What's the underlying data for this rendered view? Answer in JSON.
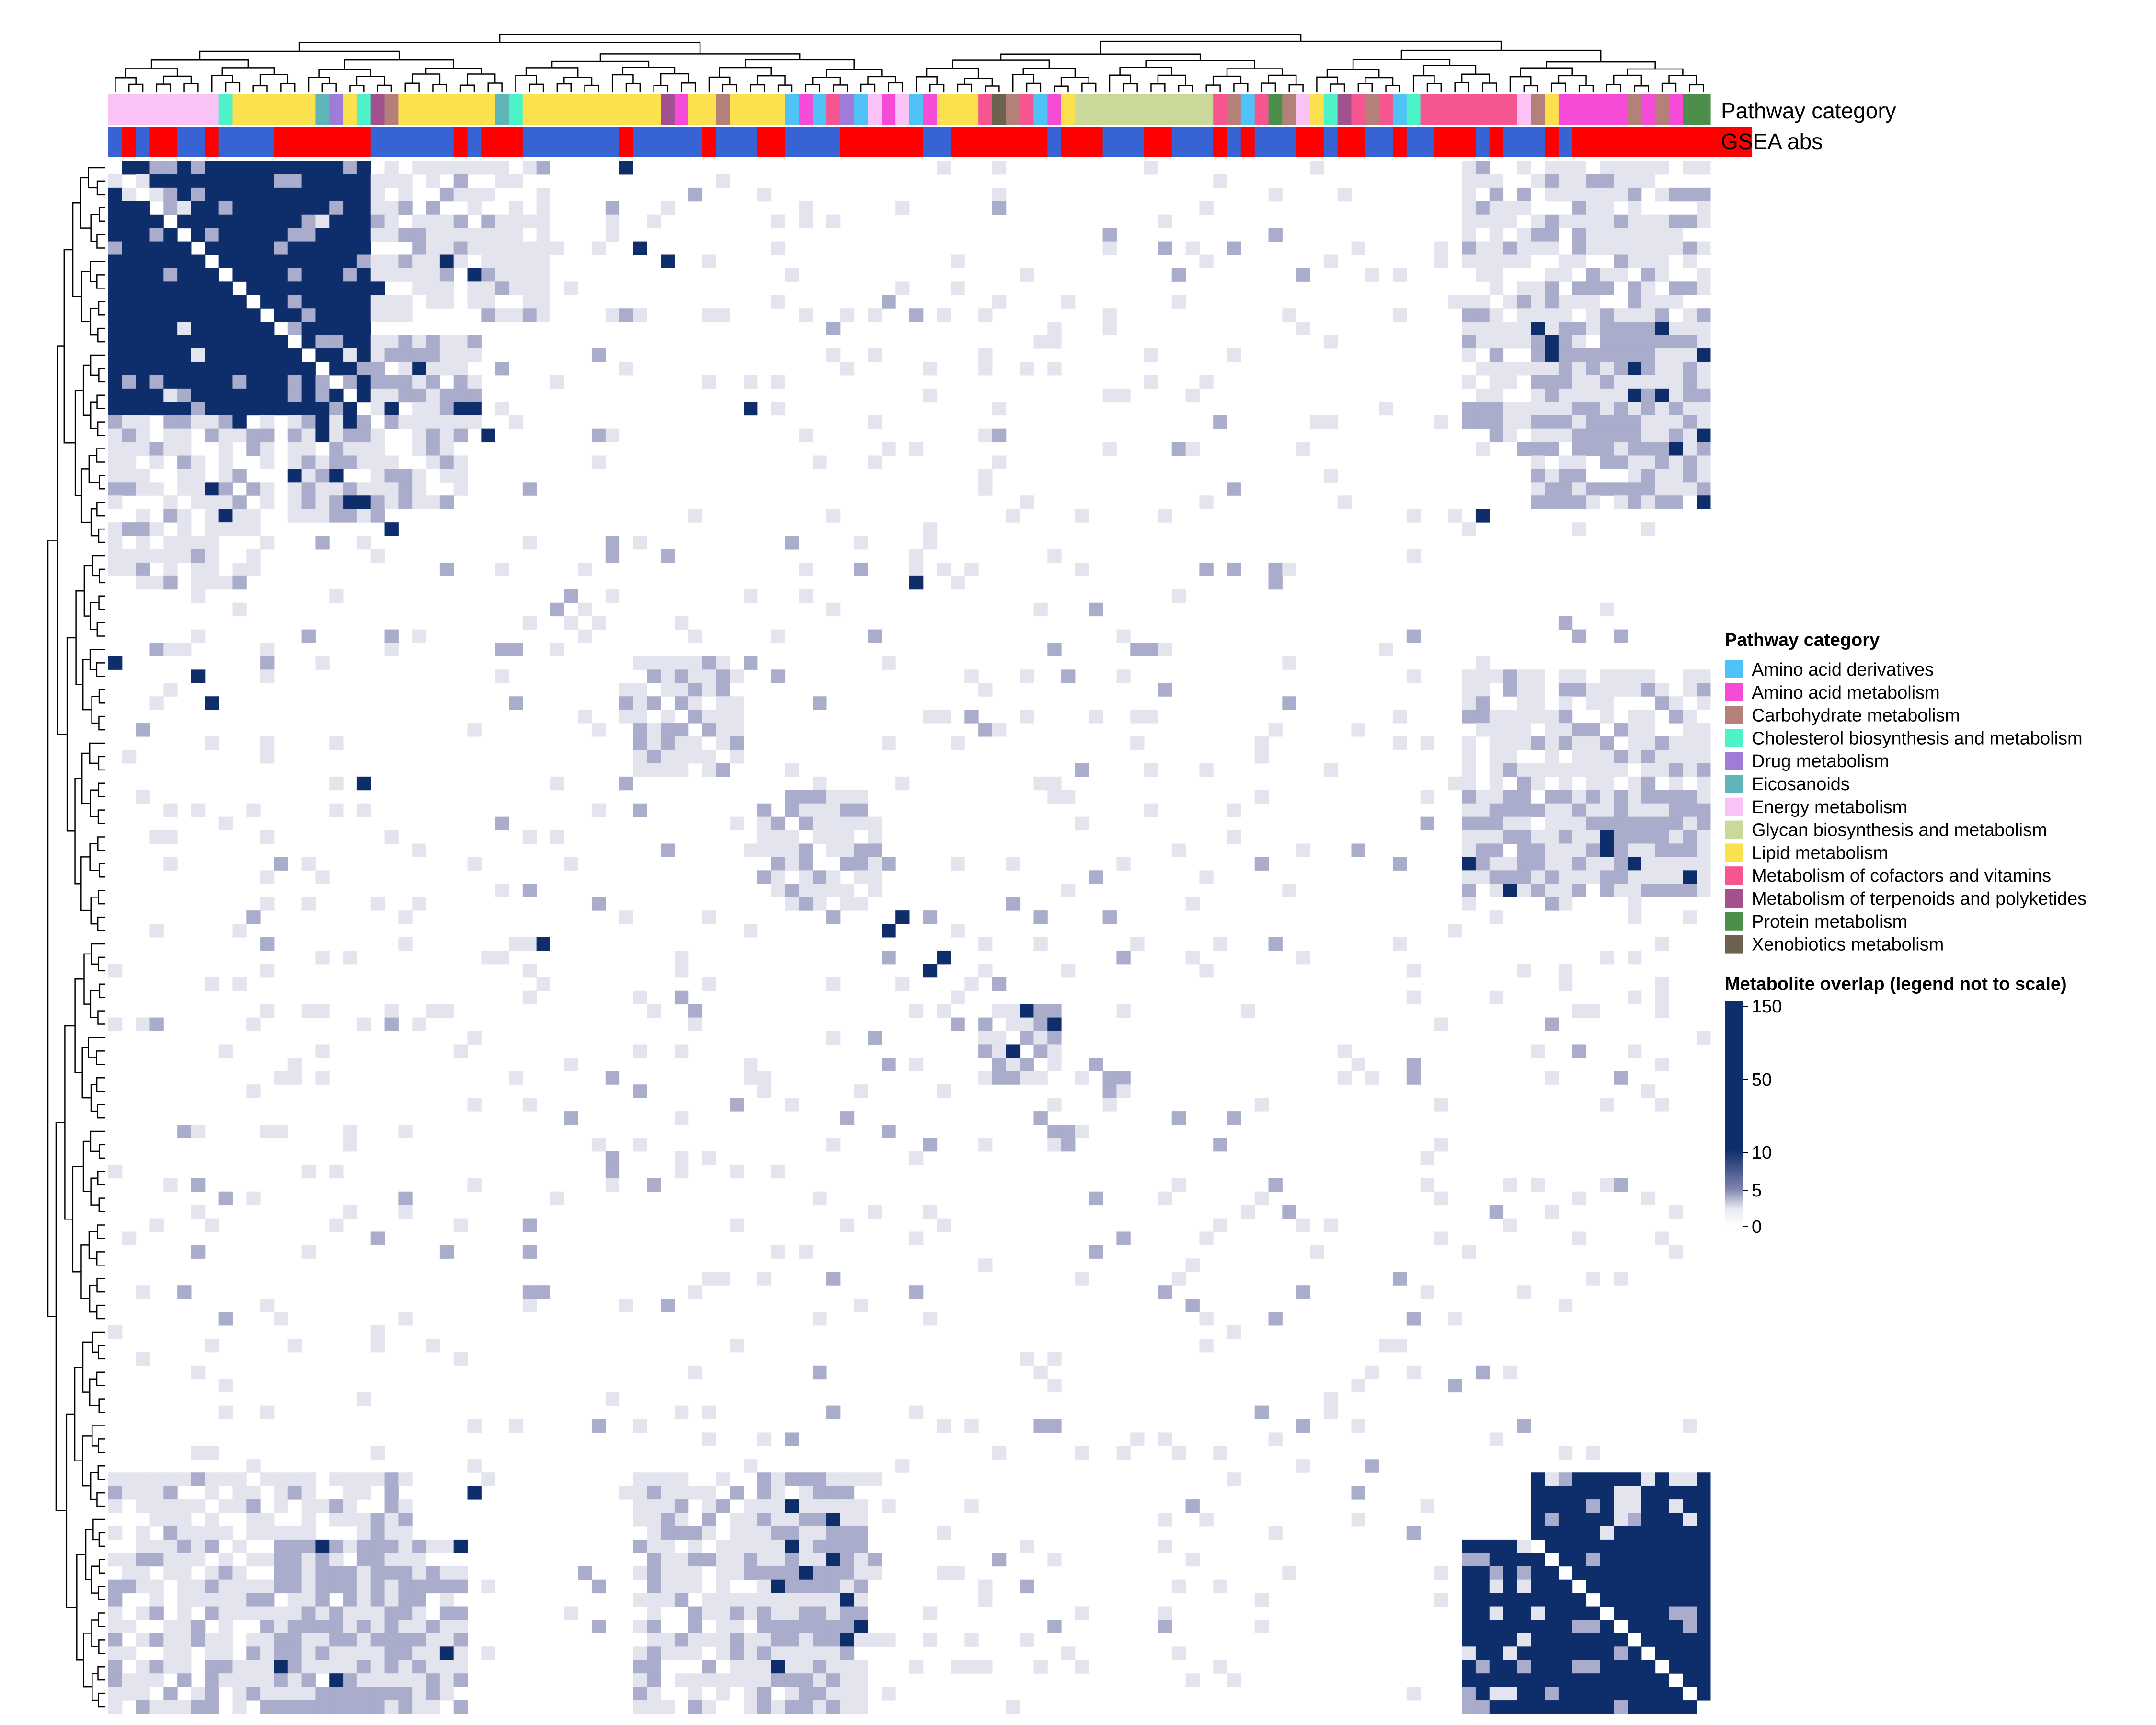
{
  "chart_data": {
    "type": "heatmap",
    "n": 116,
    "annotation_rows": [
      "Pathway category",
      "GSEA abs"
    ],
    "legend_category": {
      "title": "Pathway category",
      "items": [
        {
          "label": "Amino acid derivatives",
          "color": "#4FC3F7"
        },
        {
          "label": "Amino acid metabolism",
          "color": "#F54BD7"
        },
        {
          "label": "Carbohydrate metabolism",
          "color": "#B5807A"
        },
        {
          "label": "Cholesterol biosynthesis and metabolism",
          "color": "#4EF2C8"
        },
        {
          "label": "Drug metabolism",
          "color": "#A07CD9"
        },
        {
          "label": "Eicosanoids",
          "color": "#5FB5B8"
        },
        {
          "label": "Energy metabolism",
          "color": "#FBC2F5"
        },
        {
          "label": "Glycan biosynthesis and metabolism",
          "color": "#CAD99A"
        },
        {
          "label": "Lipid metabolism",
          "color": "#FCE14F"
        },
        {
          "label": "Metabolism of cofactors and vitamins",
          "color": "#F5568F"
        },
        {
          "label": "Metabolism of terpenoids and polyketides",
          "color": "#A3508F"
        },
        {
          "label": "Protein metabolism",
          "color": "#4D8F4A"
        },
        {
          "label": "Xenobiotics metabolism",
          "color": "#6B6250"
        }
      ]
    },
    "legend_scale": {
      "title": "Metabolite overlap (legend not to scale)",
      "ticks": [
        "150",
        "50",
        "10",
        "5",
        "0"
      ],
      "colors": {
        "high": "#0E2E6B",
        "mid": "#7D82AD",
        "low": "#E8E8F2"
      }
    },
    "gsea_colors": {
      "pos": "#FF0000",
      "neg": "#3763D4"
    },
    "category_runs": [
      [
        8,
        6
      ],
      [
        1,
        3
      ],
      [
        6,
        8
      ],
      [
        1,
        5
      ],
      [
        1,
        4
      ],
      [
        1,
        8
      ],
      [
        1,
        3
      ],
      [
        1,
        10
      ],
      [
        1,
        2
      ],
      [
        7,
        8
      ],
      [
        1,
        5
      ],
      [
        1,
        3
      ],
      [
        10,
        8
      ],
      [
        1,
        10
      ],
      [
        1,
        1
      ],
      [
        2,
        8
      ],
      [
        1,
        2
      ],
      [
        1,
        8
      ],
      [
        3,
        8
      ],
      [
        1,
        0
      ],
      [
        1,
        1
      ],
      [
        1,
        0
      ],
      [
        1,
        9
      ],
      [
        1,
        4
      ],
      [
        1,
        0
      ],
      [
        1,
        6
      ],
      [
        1,
        1
      ],
      [
        1,
        6
      ],
      [
        1,
        0
      ],
      [
        1,
        1
      ],
      [
        3,
        8
      ],
      [
        1,
        9
      ],
      [
        1,
        12
      ],
      [
        1,
        2
      ],
      [
        1,
        9
      ],
      [
        1,
        0
      ],
      [
        1,
        1
      ],
      [
        1,
        8
      ],
      [
        10,
        7
      ],
      [
        1,
        9
      ],
      [
        1,
        2
      ],
      [
        1,
        0
      ],
      [
        1,
        9
      ],
      [
        1,
        11
      ],
      [
        1,
        2
      ],
      [
        1,
        6
      ],
      [
        1,
        8
      ],
      [
        1,
        3
      ],
      [
        1,
        10
      ],
      [
        1,
        9
      ],
      [
        1,
        2
      ],
      [
        1,
        9
      ],
      [
        1,
        0
      ],
      [
        1,
        3
      ],
      [
        7,
        9
      ],
      [
        1,
        6
      ],
      [
        1,
        2
      ],
      [
        1,
        8
      ],
      [
        5,
        1
      ],
      [
        1,
        2
      ],
      [
        1,
        1
      ],
      [
        1,
        2
      ],
      [
        1,
        1
      ],
      [
        1,
        11
      ],
      [
        1,
        11
      ]
    ],
    "gsea_runs": [
      [
        1,
        0
      ],
      [
        1,
        1
      ],
      [
        1,
        0
      ],
      [
        2,
        1
      ],
      [
        2,
        0
      ],
      [
        1,
        1
      ],
      [
        4,
        0
      ],
      [
        7,
        1
      ],
      [
        6,
        0
      ],
      [
        1,
        1
      ],
      [
        1,
        0
      ],
      [
        3,
        1
      ],
      [
        7,
        0
      ],
      [
        1,
        1
      ],
      [
        5,
        0
      ],
      [
        1,
        1
      ],
      [
        3,
        0
      ],
      [
        2,
        1
      ],
      [
        4,
        0
      ],
      [
        6,
        1
      ],
      [
        2,
        0
      ],
      [
        7,
        1
      ],
      [
        1,
        0
      ],
      [
        3,
        1
      ],
      [
        3,
        0
      ],
      [
        2,
        1
      ],
      [
        3,
        0
      ],
      [
        1,
        1
      ],
      [
        1,
        0
      ],
      [
        1,
        1
      ],
      [
        3,
        0
      ],
      [
        2,
        1
      ],
      [
        1,
        0
      ],
      [
        2,
        1
      ],
      [
        2,
        0
      ],
      [
        1,
        1
      ],
      [
        2,
        0
      ],
      [
        3,
        1
      ],
      [
        1,
        0
      ],
      [
        1,
        1
      ],
      [
        3,
        0
      ],
      [
        1,
        1
      ],
      [
        1,
        0
      ],
      [
        13,
        1
      ]
    ],
    "blocks": [
      [
        0,
        12,
        0,
        12,
        3
      ],
      [
        7,
        12,
        7,
        12,
        3
      ],
      [
        0,
        12,
        7,
        12,
        3
      ],
      [
        7,
        12,
        0,
        12,
        3
      ],
      [
        0,
        12,
        13,
        6,
        1
      ],
      [
        13,
        6,
        0,
        12,
        1
      ],
      [
        13,
        6,
        13,
        6,
        2
      ],
      [
        12,
        20,
        0,
        12,
        1
      ],
      [
        0,
        12,
        12,
        20,
        1
      ],
      [
        37,
        8,
        38,
        8,
        1
      ],
      [
        38,
        8,
        37,
        8,
        1
      ],
      [
        47,
        9,
        48,
        7,
        1
      ],
      [
        48,
        7,
        47,
        9,
        1
      ],
      [
        63,
        6,
        64,
        5,
        2
      ],
      [
        64,
        5,
        63,
        6,
        2
      ],
      [
        68,
        2,
        72,
        2,
        2
      ],
      [
        72,
        2,
        68,
        2,
        2
      ],
      [
        98,
        18,
        103,
        13,
        3
      ],
      [
        103,
        13,
        98,
        18,
        3
      ],
      [
        98,
        18,
        0,
        22,
        1
      ],
      [
        0,
        22,
        98,
        18,
        1
      ],
      [
        98,
        18,
        38,
        16,
        1
      ],
      [
        38,
        16,
        98,
        18,
        1
      ],
      [
        98,
        18,
        47,
        8,
        2
      ],
      [
        47,
        8,
        98,
        18,
        2
      ],
      [
        12,
        14,
        103,
        13,
        2
      ],
      [
        103,
        13,
        12,
        14,
        2
      ],
      [
        17,
        10,
        13,
        7,
        2
      ],
      [
        13,
        7,
        17,
        10,
        2
      ],
      [
        19,
        6,
        22,
        4,
        1
      ],
      [
        22,
        4,
        19,
        6,
        1
      ]
    ],
    "hot": [
      [
        56,
        56
      ],
      [
        57,
        57
      ],
      [
        56,
        57
      ],
      [
        57,
        56
      ],
      [
        59,
        60
      ],
      [
        60,
        59
      ],
      [
        26,
        8
      ],
      [
        8,
        26
      ],
      [
        6,
        38
      ],
      [
        38,
        6
      ],
      [
        14,
        14
      ],
      [
        18,
        13
      ],
      [
        13,
        18
      ],
      [
        24,
        7
      ],
      [
        7,
        24
      ],
      [
        18,
        46
      ],
      [
        46,
        18
      ],
      [
        27,
        20
      ],
      [
        20,
        27
      ],
      [
        0,
        37
      ],
      [
        37,
        0
      ],
      [
        40,
        7
      ],
      [
        7,
        40
      ],
      [
        9,
        19
      ],
      [
        19,
        9
      ],
      [
        99,
        26
      ],
      [
        26,
        99
      ],
      [
        102,
        104
      ],
      [
        104,
        102
      ],
      [
        31,
        58
      ],
      [
        58,
        31
      ],
      [
        16,
        10
      ],
      [
        10,
        16
      ],
      [
        99,
        103
      ],
      [
        103,
        99
      ]
    ]
  }
}
